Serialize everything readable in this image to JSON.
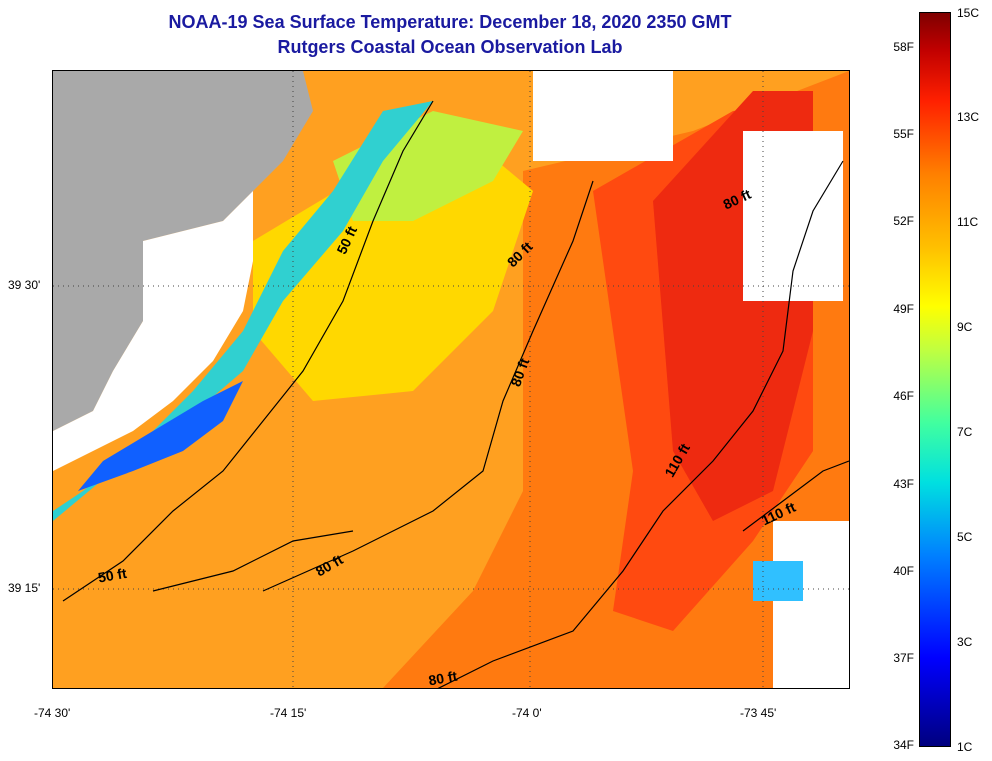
{
  "title": {
    "line1": "NOAA-19 Sea Surface Temperature:  December 18, 2020 2350 GMT",
    "line2": "Rutgers Coastal Ocean Observation Lab"
  },
  "map": {
    "lat_labels": [
      "39 30'",
      "39 15'"
    ],
    "lon_labels": [
      "-74 30'",
      "-74 15'",
      "-74 0'",
      "-73 45'"
    ],
    "contour_labels": [
      "50 ft",
      "80 ft",
      "80 ft",
      "110 ft",
      "80 ft",
      "110 ft",
      "80 ft",
      "80 ft",
      "50 ft"
    ],
    "colors": {
      "land": "#a9a9a9",
      "nodata": "#ffffff"
    }
  },
  "colorbar": {
    "fahrenheit_labels": [
      "58F",
      "55F",
      "52F",
      "49F",
      "46F",
      "43F",
      "40F",
      "37F",
      "34F"
    ],
    "celsius_labels": [
      "15C",
      "13C",
      "11C",
      "9C",
      "7C",
      "5C",
      "3C",
      "1C"
    ]
  }
}
